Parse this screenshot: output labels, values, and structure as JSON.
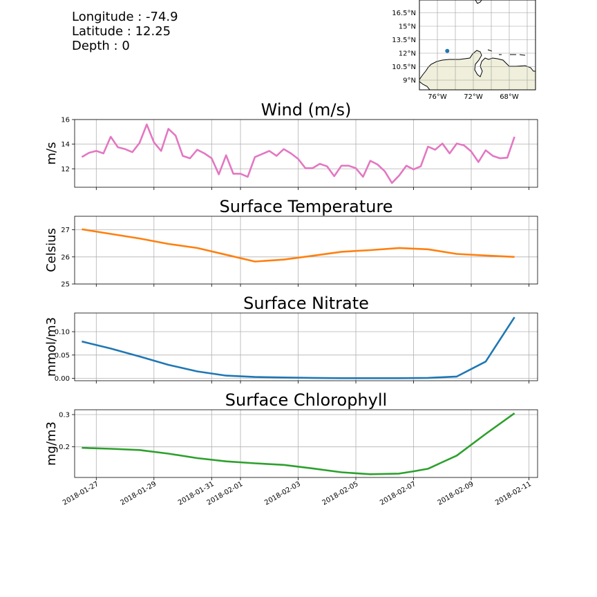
{
  "info": {
    "longitude": "Longitude : -74.9",
    "latitude": "Latitude : 12.25",
    "depth": "Depth : 0"
  },
  "map": {
    "lat_labels": [
      "16.5°N",
      "15°N",
      "13.5°N",
      "12°N",
      "10.5°N",
      "9°N"
    ],
    "lon_labels": [
      "76°W",
      "72°W",
      "68°W"
    ],
    "point": {
      "lon": -74.9,
      "lat": 12.25
    },
    "land_color": "#efefdb",
    "point_color": "#1f77b4"
  },
  "x_tick_labels": [
    "2018-01-27",
    "2018-01-29",
    "2018-01-31",
    "2018-02-01",
    "2018-02-03",
    "2018-02-05",
    "2018-02-07",
    "2018-02-09",
    "2018-02-11"
  ],
  "chart_data": [
    {
      "type": "line",
      "title": "Wind (m/s)",
      "ylabel": "m/s",
      "color": "#e377c2",
      "ylim": [
        10.5,
        16
      ],
      "yticks": [
        12,
        14,
        16
      ],
      "ytick_labels": [
        "12",
        "14",
        "16"
      ],
      "x": [
        "2018-01-26 12:00",
        "2018-01-26 18:00",
        "2018-01-27 00:00",
        "2018-01-27 06:00",
        "2018-01-27 12:00",
        "2018-01-27 18:00",
        "2018-01-28 00:00",
        "2018-01-28 06:00",
        "2018-01-28 12:00",
        "2018-01-28 18:00",
        "2018-01-29 00:00",
        "2018-01-29 06:00",
        "2018-01-29 12:00",
        "2018-01-29 18:00",
        "2018-01-30 00:00",
        "2018-01-30 06:00",
        "2018-01-30 12:00",
        "2018-01-30 18:00",
        "2018-01-31 00:00",
        "2018-01-31 06:00",
        "2018-01-31 12:00",
        "2018-01-31 18:00",
        "2018-02-01 00:00",
        "2018-02-01 06:00",
        "2018-02-01 12:00",
        "2018-02-01 18:00",
        "2018-02-02 00:00",
        "2018-02-02 06:00",
        "2018-02-02 12:00",
        "2018-02-02 18:00",
        "2018-02-03 00:00",
        "2018-02-03 06:00",
        "2018-02-03 12:00",
        "2018-02-03 18:00",
        "2018-02-04 00:00",
        "2018-02-04 06:00",
        "2018-02-04 12:00",
        "2018-02-04 18:00",
        "2018-02-05 00:00",
        "2018-02-05 06:00",
        "2018-02-05 12:00",
        "2018-02-05 18:00",
        "2018-02-06 00:00",
        "2018-02-06 06:00",
        "2018-02-06 12:00",
        "2018-02-06 18:00",
        "2018-02-07 00:00",
        "2018-02-07 06:00",
        "2018-02-07 12:00",
        "2018-02-07 18:00",
        "2018-02-08 00:00",
        "2018-02-08 06:00",
        "2018-02-08 12:00",
        "2018-02-08 18:00",
        "2018-02-09 00:00",
        "2018-02-09 06:00",
        "2018-02-09 12:00",
        "2018-02-09 18:00",
        "2018-02-10 00:00",
        "2018-02-10 06:00",
        "2018-02-10 12:00"
      ],
      "values": [
        12.95,
        13.3,
        13.45,
        13.25,
        14.6,
        13.75,
        13.6,
        13.35,
        14.1,
        15.6,
        14.15,
        13.45,
        15.25,
        14.7,
        13.05,
        12.85,
        13.55,
        13.25,
        12.85,
        11.55,
        13.1,
        11.6,
        11.6,
        11.35,
        12.95,
        13.2,
        13.45,
        13.05,
        13.6,
        13.25,
        12.8,
        12.05,
        12.05,
        12.4,
        12.2,
        11.4,
        12.25,
        12.25,
        12.05,
        11.35,
        12.65,
        12.35,
        11.8,
        10.85,
        11.45,
        12.25,
        11.95,
        12.2,
        13.8,
        13.55,
        14.05,
        13.25,
        14.05,
        13.9,
        13.4,
        12.55,
        13.5,
        13.05,
        12.85,
        12.9,
        14.6
      ]
    },
    {
      "type": "line",
      "title": "Surface Temperature",
      "ylabel": "Celsius",
      "color": "#ff7f0e",
      "ylim": [
        25,
        27.5
      ],
      "yticks": [
        25,
        26,
        27
      ],
      "ytick_labels": [
        "25",
        "26",
        "27"
      ],
      "x": [
        "2018-01-26 12:00",
        "2018-01-27 12:00",
        "2018-01-28 12:00",
        "2018-01-29 12:00",
        "2018-01-30 12:00",
        "2018-01-31 12:00",
        "2018-02-01 12:00",
        "2018-02-02 12:00",
        "2018-02-03 12:00",
        "2018-02-04 12:00",
        "2018-02-05 12:00",
        "2018-02-06 12:00",
        "2018-02-07 12:00",
        "2018-02-08 12:00",
        "2018-02-09 12:00",
        "2018-02-10 12:00"
      ],
      "values": [
        27.02,
        26.85,
        26.68,
        26.48,
        26.33,
        26.08,
        25.83,
        25.9,
        26.04,
        26.19,
        26.25,
        26.33,
        26.28,
        26.11,
        26.05,
        26.0
      ]
    },
    {
      "type": "line",
      "title": "Surface Nitrate",
      "ylabel": "mmol/m3",
      "color": "#1f77b4",
      "ylim": [
        -0.005,
        0.14
      ],
      "yticks": [
        0.0,
        0.05,
        0.1
      ],
      "ytick_labels": [
        "0.00",
        "0.05",
        "0.10"
      ],
      "x": [
        "2018-01-26 12:00",
        "2018-01-27 12:00",
        "2018-01-28 12:00",
        "2018-01-29 12:00",
        "2018-01-30 12:00",
        "2018-01-31 12:00",
        "2018-02-01 12:00",
        "2018-02-02 12:00",
        "2018-02-03 12:00",
        "2018-02-04 12:00",
        "2018-02-05 12:00",
        "2018-02-06 12:00",
        "2018-02-07 12:00",
        "2018-02-08 12:00",
        "2018-02-09 12:00",
        "2018-02-10 12:00"
      ],
      "values": [
        0.079,
        0.064,
        0.047,
        0.029,
        0.015,
        0.006,
        0.003,
        0.002,
        0.001,
        0.0005,
        0.0005,
        0.0005,
        0.001,
        0.004,
        0.036,
        0.131
      ]
    },
    {
      "type": "line",
      "title": "Surface Chlorophyll",
      "ylabel": "mg/m3",
      "color": "#2ca02c",
      "ylim": [
        0.105,
        0.315
      ],
      "yticks": [
        0.2,
        0.3
      ],
      "ytick_labels": [
        "0.2",
        "0.3"
      ],
      "x": [
        "2018-01-26 12:00",
        "2018-01-27 12:00",
        "2018-01-28 12:00",
        "2018-01-29 12:00",
        "2018-01-30 12:00",
        "2018-01-31 12:00",
        "2018-02-01 12:00",
        "2018-02-02 12:00",
        "2018-02-03 12:00",
        "2018-02-04 12:00",
        "2018-02-05 00:00",
        "2018-02-05 12:00",
        "2018-02-06 12:00",
        "2018-02-07 00:00",
        "2018-02-07 12:00",
        "2018-02-08 12:00",
        "2018-02-09 12:00",
        "2018-02-10 12:00"
      ],
      "values": [
        0.197,
        0.194,
        0.19,
        0.179,
        0.165,
        0.155,
        0.149,
        0.144,
        0.133,
        0.121,
        0.118,
        0.115,
        0.117,
        0.124,
        0.132,
        0.173,
        0.24,
        0.304
      ]
    }
  ]
}
